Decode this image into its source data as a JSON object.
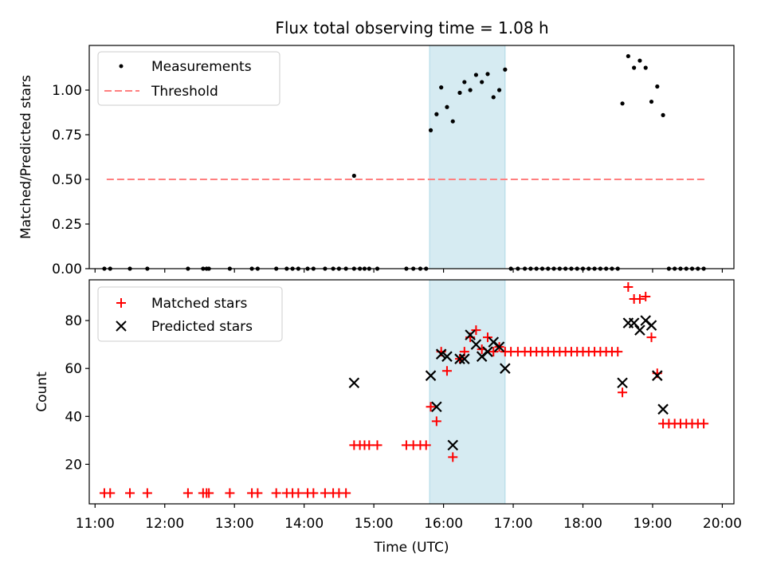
{
  "title": "Flux total observing time = 1.08 h",
  "chart_data": [
    {
      "type": "scatter",
      "ylabel": "Matched/Predicted stars",
      "xlabel": "",
      "ylim": [
        0,
        1.25
      ],
      "yticks": [
        "0.00",
        "0.25",
        "0.50",
        "0.75",
        "1.00"
      ],
      "ytick_values": [
        0,
        0.25,
        0.5,
        0.75,
        1.0
      ],
      "legend_position": "upper-left",
      "highlight_span": {
        "from": "15:48",
        "to": "16:53",
        "color": "#add8e6"
      },
      "threshold": {
        "name": "Threshold",
        "value": 0.5,
        "from": "11:10",
        "to": "19:45",
        "color": "#ff7f7f"
      },
      "series": [
        {
          "name": "Measurements",
          "color": "#000000",
          "points": [
            [
              "11:08",
              0
            ],
            [
              "11:13",
              0
            ],
            [
              "11:30",
              0
            ],
            [
              "11:45",
              0
            ],
            [
              "12:20",
              0
            ],
            [
              "12:33",
              0
            ],
            [
              "12:36",
              0
            ],
            [
              "12:38",
              0
            ],
            [
              "12:56",
              0
            ],
            [
              "13:15",
              0
            ],
            [
              "13:20",
              0
            ],
            [
              "13:36",
              0
            ],
            [
              "13:45",
              0
            ],
            [
              "13:50",
              0
            ],
            [
              "13:55",
              0
            ],
            [
              "14:03",
              0
            ],
            [
              "14:08",
              0
            ],
            [
              "14:18",
              0
            ],
            [
              "14:25",
              0
            ],
            [
              "14:30",
              0
            ],
            [
              "14:36",
              0
            ],
            [
              "14:43",
              0
            ],
            [
              "14:48",
              0
            ],
            [
              "14:52",
              0
            ],
            [
              "14:56",
              0
            ],
            [
              "15:03",
              0
            ],
            [
              "15:28",
              0
            ],
            [
              "15:34",
              0
            ],
            [
              "15:40",
              0
            ],
            [
              "15:45",
              0
            ],
            [
              "14:43",
              0.52
            ],
            [
              "15:49",
              0.775
            ],
            [
              "15:54",
              0.865
            ],
            [
              "15:58",
              1.015
            ],
            [
              "16:03",
              0.905
            ],
            [
              "16:08",
              0.825
            ],
            [
              "16:14",
              0.985
            ],
            [
              "16:18",
              1.045
            ],
            [
              "16:23",
              1.0
            ],
            [
              "16:28",
              1.085
            ],
            [
              "16:33",
              1.045
            ],
            [
              "16:38",
              1.09
            ],
            [
              "16:43",
              0.96
            ],
            [
              "16:48",
              1.0
            ],
            [
              "16:53",
              1.115
            ],
            [
              "16:58",
              0
            ],
            [
              "17:04",
              0
            ],
            [
              "17:10",
              0
            ],
            [
              "17:15",
              0
            ],
            [
              "17:20",
              0
            ],
            [
              "17:25",
              0
            ],
            [
              "17:30",
              0
            ],
            [
              "17:35",
              0
            ],
            [
              "17:40",
              0
            ],
            [
              "17:45",
              0
            ],
            [
              "17:50",
              0
            ],
            [
              "17:55",
              0
            ],
            [
              "18:00",
              0
            ],
            [
              "18:05",
              0
            ],
            [
              "18:10",
              0
            ],
            [
              "18:15",
              0
            ],
            [
              "18:20",
              0
            ],
            [
              "18:25",
              0
            ],
            [
              "18:30",
              0
            ],
            [
              "18:34",
              0.925
            ],
            [
              "18:39",
              1.19
            ],
            [
              "18:44",
              1.125
            ],
            [
              "18:49",
              1.165
            ],
            [
              "18:54",
              1.125
            ],
            [
              "18:59",
              0.935
            ],
            [
              "19:04",
              1.02
            ],
            [
              "19:09",
              0.86
            ],
            [
              "19:14",
              0
            ],
            [
              "19:19",
              0
            ],
            [
              "19:24",
              0
            ],
            [
              "19:29",
              0
            ],
            [
              "19:34",
              0
            ],
            [
              "19:39",
              0
            ],
            [
              "19:44",
              0
            ]
          ]
        }
      ]
    },
    {
      "type": "scatter",
      "ylabel": "Count",
      "xlabel": "Time (UTC)",
      "ylim": [
        3.5,
        97
      ],
      "xlim": [
        "10:55",
        "20:10"
      ],
      "yticks": [
        "20",
        "40",
        "60",
        "80"
      ],
      "ytick_values": [
        20,
        40,
        60,
        80
      ],
      "xticks": [
        "11:00",
        "12:00",
        "13:00",
        "14:00",
        "15:00",
        "16:00",
        "17:00",
        "18:00",
        "19:00",
        "20:00"
      ],
      "legend_position": "upper-left",
      "highlight_span": {
        "from": "15:48",
        "to": "16:53",
        "color": "#add8e6"
      },
      "series": [
        {
          "name": "Matched stars",
          "color": "#ff0000",
          "marker": "plus",
          "points": [
            [
              "11:08",
              8
            ],
            [
              "11:13",
              8
            ],
            [
              "11:30",
              8
            ],
            [
              "11:45",
              8
            ],
            [
              "12:20",
              8
            ],
            [
              "12:33",
              8
            ],
            [
              "12:36",
              8
            ],
            [
              "12:38",
              8
            ],
            [
              "12:56",
              8
            ],
            [
              "13:15",
              8
            ],
            [
              "13:20",
              8
            ],
            [
              "13:36",
              8
            ],
            [
              "13:45",
              8
            ],
            [
              "13:50",
              8
            ],
            [
              "13:55",
              8
            ],
            [
              "14:03",
              8
            ],
            [
              "14:08",
              8
            ],
            [
              "14:18",
              8
            ],
            [
              "14:25",
              8
            ],
            [
              "14:30",
              8
            ],
            [
              "14:36",
              8
            ],
            [
              "14:43",
              28
            ],
            [
              "14:48",
              28
            ],
            [
              "14:52",
              28
            ],
            [
              "14:56",
              28
            ],
            [
              "15:03",
              28
            ],
            [
              "15:28",
              28
            ],
            [
              "15:34",
              28
            ],
            [
              "15:40",
              28
            ],
            [
              "15:45",
              28
            ],
            [
              "15:49",
              44
            ],
            [
              "15:54",
              38
            ],
            [
              "15:58",
              67
            ],
            [
              "16:03",
              59
            ],
            [
              "16:08",
              23
            ],
            [
              "16:14",
              64
            ],
            [
              "16:18",
              67
            ],
            [
              "16:23",
              73
            ],
            [
              "16:28",
              76
            ],
            [
              "16:33",
              68
            ],
            [
              "16:38",
              73
            ],
            [
              "16:43",
              67
            ],
            [
              "16:48",
              69
            ],
            [
              "16:53",
              67
            ],
            [
              "16:58",
              67
            ],
            [
              "17:04",
              67
            ],
            [
              "17:10",
              67
            ],
            [
              "17:15",
              67
            ],
            [
              "17:20",
              67
            ],
            [
              "17:25",
              67
            ],
            [
              "17:30",
              67
            ],
            [
              "17:35",
              67
            ],
            [
              "17:40",
              67
            ],
            [
              "17:45",
              67
            ],
            [
              "17:50",
              67
            ],
            [
              "17:55",
              67
            ],
            [
              "18:00",
              67
            ],
            [
              "18:05",
              67
            ],
            [
              "18:10",
              67
            ],
            [
              "18:15",
              67
            ],
            [
              "18:20",
              67
            ],
            [
              "18:25",
              67
            ],
            [
              "18:30",
              67
            ],
            [
              "18:34",
              50
            ],
            [
              "18:39",
              94
            ],
            [
              "18:44",
              89
            ],
            [
              "18:49",
              89
            ],
            [
              "18:54",
              90
            ],
            [
              "18:59",
              73
            ],
            [
              "19:04",
              58
            ],
            [
              "19:09",
              37
            ],
            [
              "19:14",
              37
            ],
            [
              "19:19",
              37
            ],
            [
              "19:24",
              37
            ],
            [
              "19:29",
              37
            ],
            [
              "19:34",
              37
            ],
            [
              "19:39",
              37
            ],
            [
              "19:44",
              37
            ]
          ]
        },
        {
          "name": "Predicted stars",
          "color": "#000000",
          "marker": "x",
          "points": [
            [
              "14:43",
              54
            ],
            [
              "15:49",
              57
            ],
            [
              "15:54",
              44
            ],
            [
              "15:58",
              66
            ],
            [
              "16:03",
              65
            ],
            [
              "16:08",
              28
            ],
            [
              "16:14",
              64
            ],
            [
              "16:18",
              64
            ],
            [
              "16:23",
              74
            ],
            [
              "16:28",
              70
            ],
            [
              "16:33",
              65
            ],
            [
              "16:38",
              67
            ],
            [
              "16:43",
              71
            ],
            [
              "16:48",
              69
            ],
            [
              "16:53",
              60
            ],
            [
              "18:34",
              54
            ],
            [
              "18:39",
              79
            ],
            [
              "18:44",
              79
            ],
            [
              "18:49",
              76
            ],
            [
              "18:54",
              80
            ],
            [
              "18:59",
              78
            ],
            [
              "19:04",
              57
            ],
            [
              "19:09",
              43
            ]
          ]
        }
      ]
    }
  ]
}
